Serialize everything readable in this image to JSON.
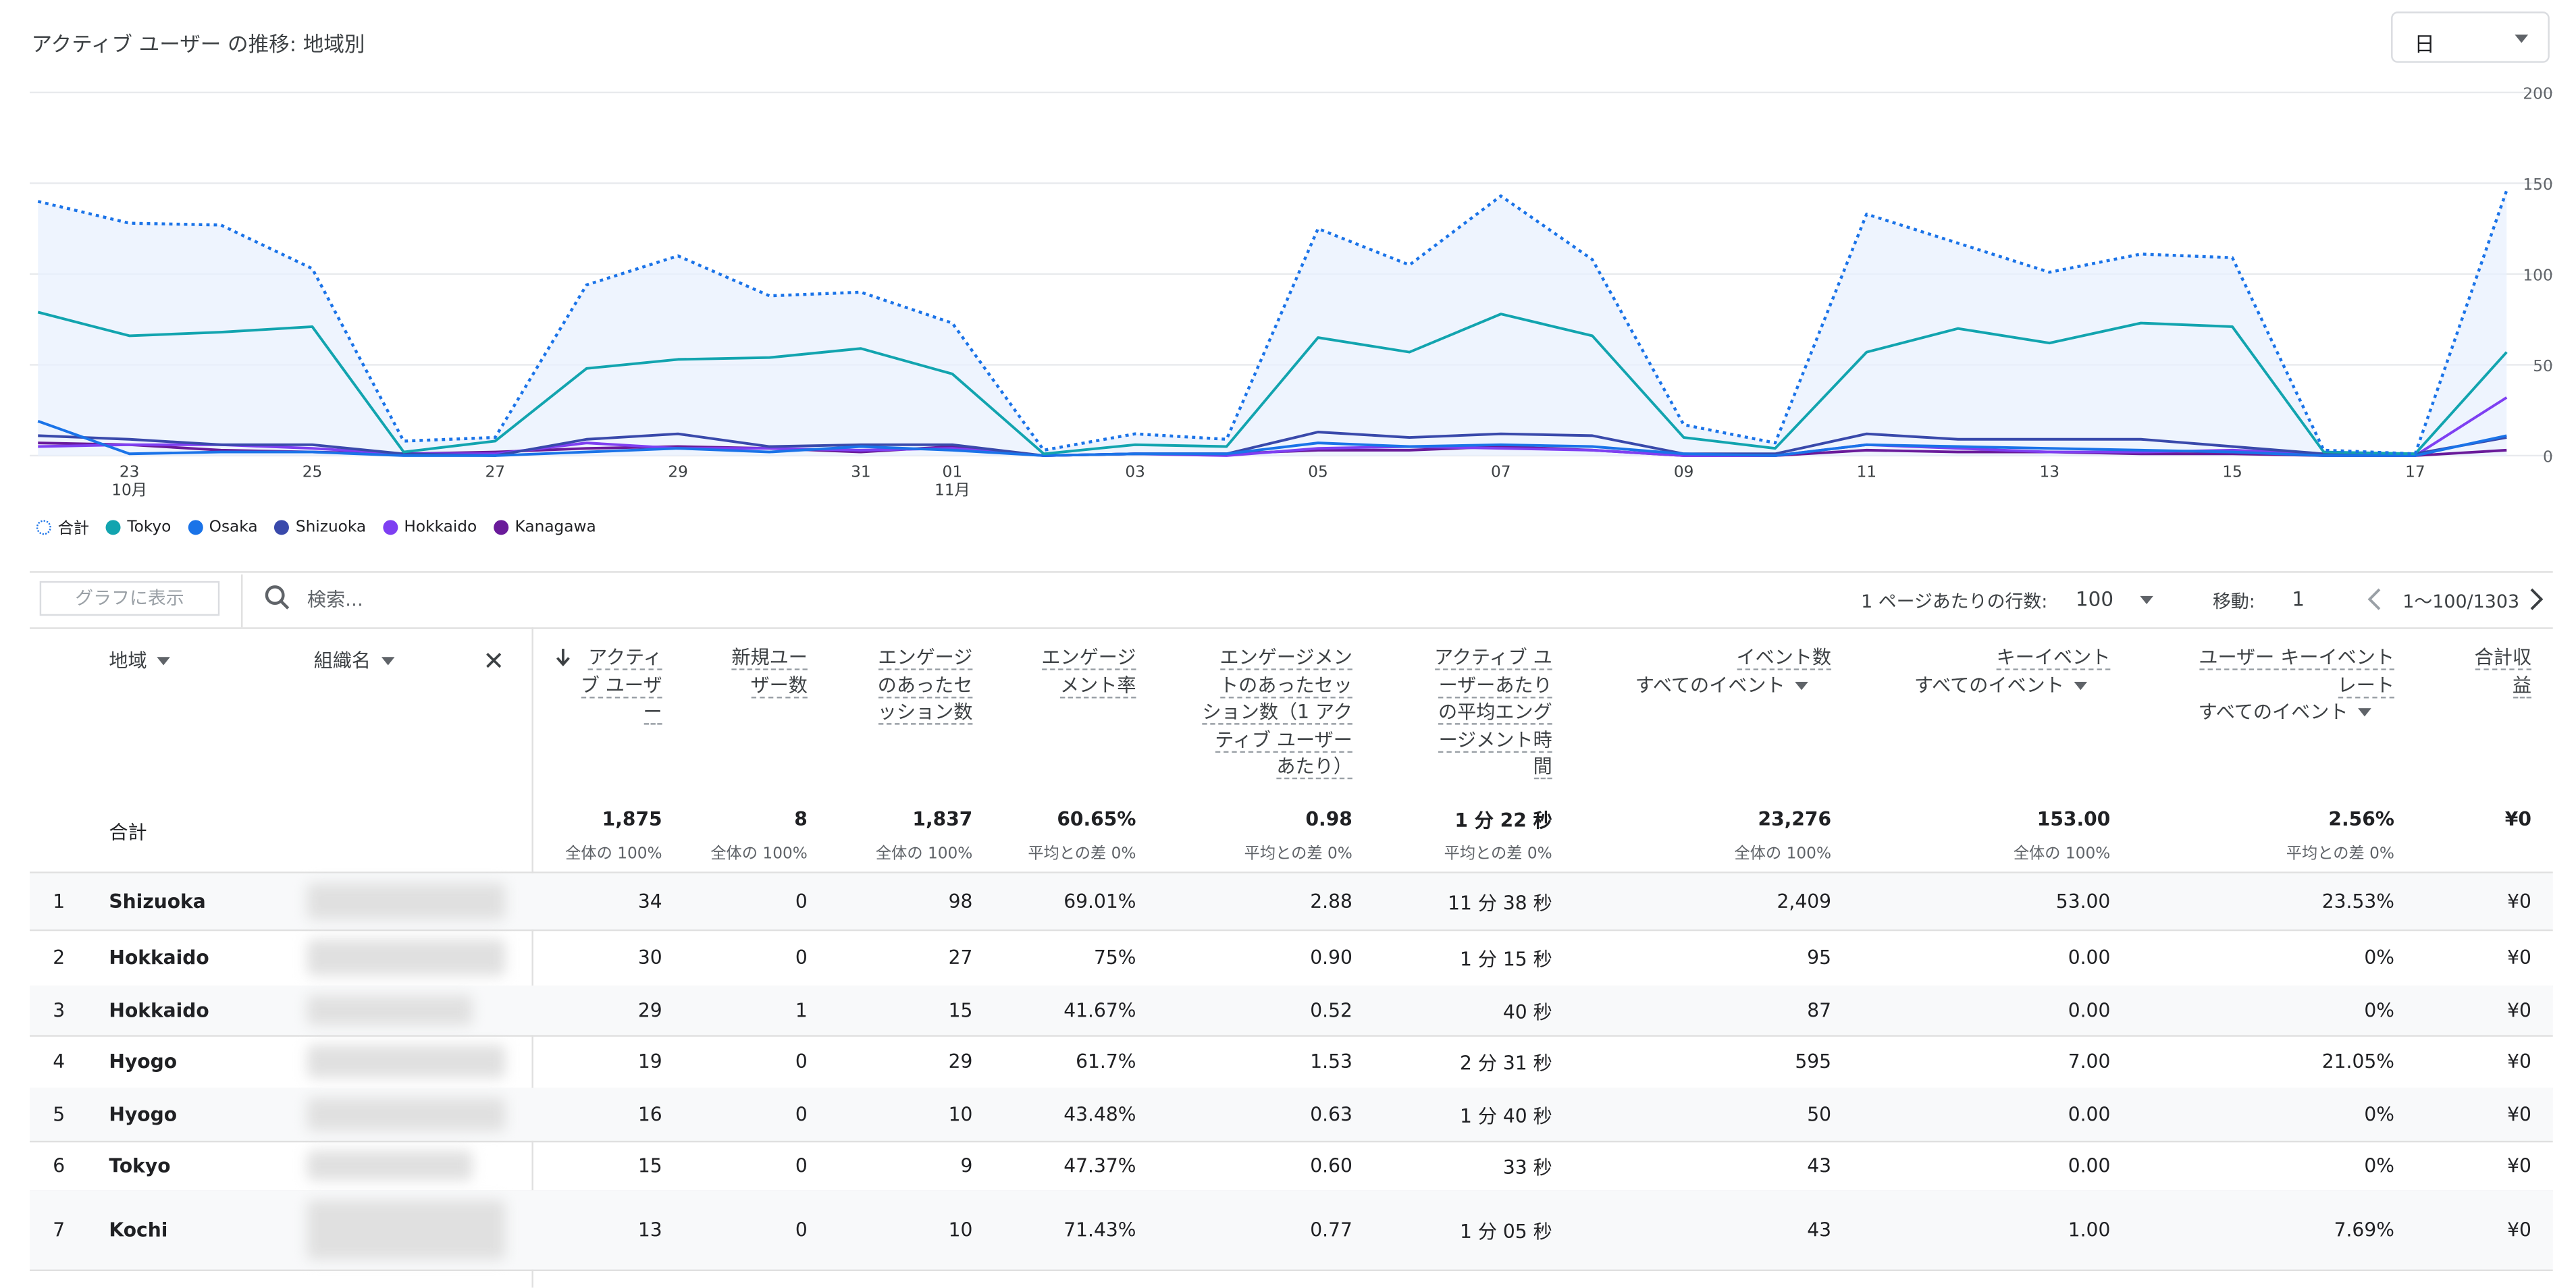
{
  "header": {
    "title": "アクティブ ユーザー の推移: 地域別",
    "period": "日"
  },
  "chart_data": {
    "type": "line",
    "x": [
      "10/22",
      "10/23",
      "10/24",
      "10/25",
      "10/26",
      "10/27",
      "10/28",
      "10/29",
      "10/30",
      "10/31",
      "11/01",
      "11/02",
      "11/03",
      "11/04",
      "11/05",
      "11/06",
      "11/07",
      "11/08",
      "11/09",
      "11/10",
      "11/11",
      "11/12",
      "11/13",
      "11/14",
      "11/15",
      "11/16",
      "11/17",
      "11/18"
    ],
    "x_tick_labels": [
      {
        "x": "10/23",
        "label": "23",
        "sub": "10月"
      },
      {
        "x": "10/25",
        "label": "25"
      },
      {
        "x": "10/27",
        "label": "27"
      },
      {
        "x": "10/29",
        "label": "29"
      },
      {
        "x": "10/31",
        "label": "31"
      },
      {
        "x": "11/01",
        "label": "01",
        "sub": "11月"
      },
      {
        "x": "11/03",
        "label": "03"
      },
      {
        "x": "11/05",
        "label": "05"
      },
      {
        "x": "11/07",
        "label": "07"
      },
      {
        "x": "11/09",
        "label": "09"
      },
      {
        "x": "11/11",
        "label": "11"
      },
      {
        "x": "11/13",
        "label": "13"
      },
      {
        "x": "11/15",
        "label": "15"
      },
      {
        "x": "11/17",
        "label": "17"
      }
    ],
    "y_ticks": [
      0,
      50,
      100,
      150,
      200
    ],
    "ylim": [
      0,
      200
    ],
    "grid": true,
    "legend_position": "bottom-left",
    "series": [
      {
        "name": "合計",
        "color": "#1a73e8",
        "style": "dotted",
        "fill": true,
        "values": [
          140,
          128,
          127,
          103,
          8,
          10,
          94,
          110,
          88,
          90,
          73,
          3,
          12,
          9,
          125,
          105,
          143,
          108,
          17,
          7,
          133,
          117,
          101,
          111,
          109,
          3,
          1,
          146
        ]
      },
      {
        "name": "Tokyo",
        "color": "#12a4af",
        "style": "solid",
        "values": [
          79,
          66,
          68,
          71,
          2,
          8,
          48,
          53,
          54,
          59,
          45,
          1,
          6,
          5,
          65,
          57,
          78,
          66,
          10,
          4,
          57,
          70,
          62,
          73,
          71,
          2,
          1,
          57
        ]
      },
      {
        "name": "Osaka",
        "color": "#1a73e8",
        "style": "solid",
        "values": [
          19,
          1,
          2,
          2,
          0,
          0,
          2,
          4,
          2,
          5,
          3,
          0,
          1,
          1,
          7,
          5,
          6,
          5,
          1,
          0,
          6,
          5,
          4,
          3,
          2,
          0,
          0,
          11
        ]
      },
      {
        "name": "Shizuoka",
        "color": "#3949ab",
        "style": "solid",
        "values": [
          11,
          9,
          6,
          6,
          1,
          0,
          9,
          12,
          5,
          6,
          6,
          0,
          1,
          1,
          13,
          10,
          12,
          11,
          1,
          1,
          12,
          9,
          9,
          9,
          5,
          1,
          1,
          10
        ]
      },
      {
        "name": "Hokkaido",
        "color": "#7e3ff2",
        "style": "solid",
        "values": [
          5,
          6,
          6,
          4,
          1,
          1,
          7,
          4,
          4,
          3,
          4,
          0,
          1,
          0,
          4,
          5,
          4,
          3,
          0,
          0,
          6,
          4,
          2,
          2,
          3,
          1,
          0,
          32
        ]
      },
      {
        "name": "Kanagawa",
        "color": "#6a1b9a",
        "style": "solid",
        "values": [
          7,
          6,
          3,
          2,
          1,
          2,
          4,
          5,
          4,
          2,
          5,
          0,
          1,
          1,
          3,
          3,
          5,
          3,
          0,
          0,
          3,
          2,
          2,
          1,
          1,
          0,
          0,
          3
        ]
      }
    ]
  },
  "table_toolbar": {
    "show_in_chart": "グラフに表示",
    "search_placeholder": "検索...",
    "rows_per_page_label": "1 ページあたりの行数:",
    "rows_per_page": "100",
    "goto_label": "移動:",
    "goto_value": "1",
    "range": "1〜100/1303"
  },
  "columns": {
    "dims": {
      "region": "地域",
      "org": "組織名"
    },
    "metrics": [
      {
        "lines": [
          "アクティ",
          "ブ ユーザ",
          "ー"
        ],
        "sub": ""
      },
      {
        "lines": [
          "新規ユー",
          "ザー数"
        ],
        "sub": ""
      },
      {
        "lines": [
          "エンゲージ",
          "のあったセ",
          "ッション数"
        ],
        "sub": ""
      },
      {
        "lines": [
          "エンゲージ",
          "メント率"
        ],
        "sub": ""
      },
      {
        "lines": [
          "エンゲージメン",
          "トのあったセッ",
          "ション数（1 アク",
          "ティブ ユーザー",
          "あたり）"
        ],
        "sub": ""
      },
      {
        "lines": [
          "アクティブ ユ",
          "ーザーあたり",
          "の平均エング",
          "ージメント時",
          "間"
        ],
        "sub": ""
      },
      {
        "lines": [
          "イベント数"
        ],
        "sub": "すべてのイベント"
      },
      {
        "lines": [
          "キーイベント"
        ],
        "sub": "すべてのイベント"
      },
      {
        "lines": [
          "ユーザー キーイベント",
          "レート"
        ],
        "sub": "すべてのイベント"
      },
      {
        "lines": [
          "合計収",
          "益"
        ],
        "sub": ""
      }
    ]
  },
  "totals": {
    "label": "合計",
    "values": [
      "1,875",
      "8",
      "1,837",
      "60.65%",
      "0.98",
      "1 分 22 秒",
      "23,276",
      "153.00",
      "2.56%",
      "¥0"
    ],
    "pcts": [
      "全体の 100%",
      "全体の 100%",
      "全体の 100%",
      "平均との差 0%",
      "平均との差 0%",
      "平均との差 0%",
      "全体の 100%",
      "全体の 100%",
      "平均との差 0%",
      ""
    ]
  },
  "rows": [
    {
      "n": "1",
      "region": "Shizuoka",
      "values": [
        "34",
        "0",
        "98",
        "69.01%",
        "2.88",
        "11 分 38 秒",
        "2,409",
        "53.00",
        "23.53%",
        "¥0"
      ]
    },
    {
      "n": "2",
      "region": "Hokkaido",
      "values": [
        "30",
        "0",
        "27",
        "75%",
        "0.90",
        "1 分 15 秒",
        "95",
        "0.00",
        "0%",
        "¥0"
      ]
    },
    {
      "n": "3",
      "region": "Hokkaido",
      "values": [
        "29",
        "1",
        "15",
        "41.67%",
        "0.52",
        "40 秒",
        "87",
        "0.00",
        "0%",
        "¥0"
      ]
    },
    {
      "n": "4",
      "region": "Hyogo",
      "values": [
        "19",
        "0",
        "29",
        "61.7%",
        "1.53",
        "2 分 31 秒",
        "595",
        "7.00",
        "21.05%",
        "¥0"
      ]
    },
    {
      "n": "5",
      "region": "Hyogo",
      "values": [
        "16",
        "0",
        "10",
        "43.48%",
        "0.63",
        "1 分 40 秒",
        "50",
        "0.00",
        "0%",
        "¥0"
      ]
    },
    {
      "n": "6",
      "region": "Tokyo",
      "values": [
        "15",
        "0",
        "9",
        "47.37%",
        "0.60",
        "33 秒",
        "43",
        "0.00",
        "0%",
        "¥0"
      ]
    },
    {
      "n": "7",
      "region": "Kochi",
      "values": [
        "13",
        "0",
        "10",
        "71.43%",
        "0.77",
        "1 分 05 秒",
        "43",
        "1.00",
        "7.69%",
        "¥0"
      ]
    }
  ]
}
